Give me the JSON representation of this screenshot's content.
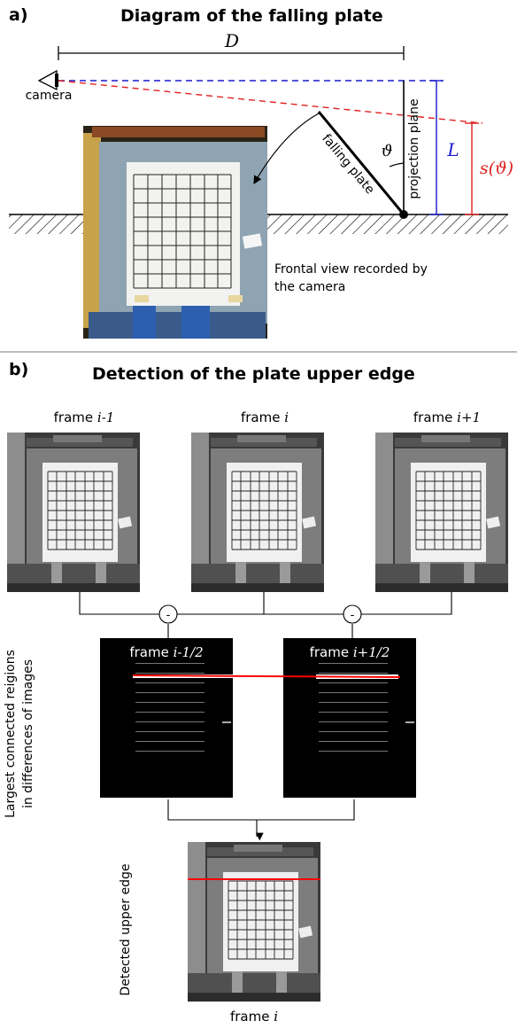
{
  "panel_a": {
    "label": "a)",
    "title": "Diagram of the falling plate",
    "distance_symbol": "D",
    "camera_label": "camera",
    "plate_label": "falling plate",
    "projection_plane_label": "projection plane",
    "angle_symbol": "ϑ",
    "length_symbol": "L",
    "s_symbol": "s(ϑ)",
    "frontal_view_caption": "Frontal view recorded by the camera",
    "colors": {
      "blue": "#1a1acc",
      "red": "#e02020"
    }
  },
  "panel_b": {
    "label": "b)",
    "title": "Detection of the plate upper edge",
    "frames_top": [
      {
        "prefix": "frame ",
        "index": "i-1"
      },
      {
        "prefix": "frame ",
        "index": "i"
      },
      {
        "prefix": "frame ",
        "index": "i+1"
      }
    ],
    "diff_frames": [
      {
        "prefix": "frame ",
        "index": "i-1/2"
      },
      {
        "prefix": "frame ",
        "index": "i+1/2"
      }
    ],
    "minus_symbol": "-",
    "side_label_line1": "Largest connected reigions",
    "side_label_line2": "in differences of images",
    "detected_label": "Detected upper edge",
    "bottom_frame": {
      "prefix": "frame ",
      "index": "i"
    },
    "colors": {
      "edge": "#ff0000"
    }
  }
}
